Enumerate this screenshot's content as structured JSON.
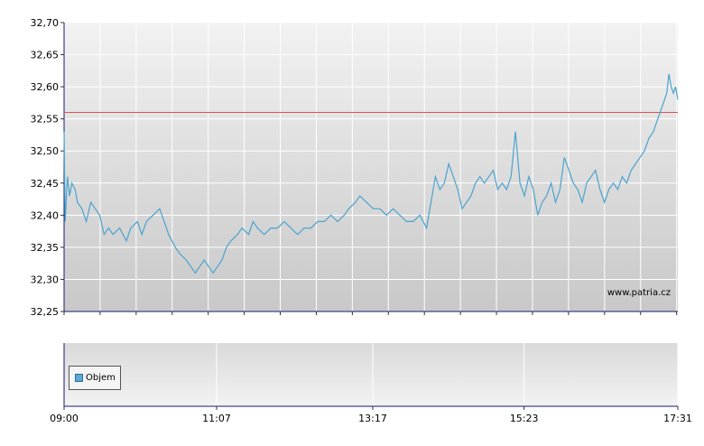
{
  "chart_data": {
    "type": "line",
    "watermark": "www.patria.cz",
    "y_ticks": [
      "32,70",
      "32,65",
      "32,60",
      "32,55",
      "32,50",
      "32,45",
      "32,40",
      "32,35",
      "32,30",
      "32,25"
    ],
    "ylim": [
      32.25,
      32.7
    ],
    "x_ticks": [
      "09:00",
      "11:07",
      "13:17",
      "15:23",
      "17:31"
    ],
    "reference_line": 32.56,
    "series": [
      {
        "color": "#4aa3cf",
        "values": [
          [
            0.0,
            32.53
          ],
          [
            0.5,
            32.39
          ],
          [
            1.5,
            32.46
          ],
          [
            2.5,
            32.43
          ],
          [
            3.5,
            32.45
          ],
          [
            5,
            32.44
          ],
          [
            6,
            32.42
          ],
          [
            8,
            32.41
          ],
          [
            10,
            32.39
          ],
          [
            12,
            32.42
          ],
          [
            14,
            32.41
          ],
          [
            16,
            32.4
          ],
          [
            18,
            32.37
          ],
          [
            20,
            32.38
          ],
          [
            22,
            32.37
          ],
          [
            25,
            32.38
          ],
          [
            28,
            32.36
          ],
          [
            30,
            32.38
          ],
          [
            33,
            32.39
          ],
          [
            35,
            32.37
          ],
          [
            37,
            32.39
          ],
          [
            40,
            32.4
          ],
          [
            43,
            32.41
          ],
          [
            45,
            32.39
          ],
          [
            47,
            32.37
          ],
          [
            50,
            32.35
          ],
          [
            52,
            32.34
          ],
          [
            55,
            32.33
          ],
          [
            57,
            32.32
          ],
          [
            59,
            32.31
          ],
          [
            61,
            32.32
          ],
          [
            63,
            32.33
          ],
          [
            65,
            32.32
          ],
          [
            67,
            32.31
          ],
          [
            69,
            32.32
          ],
          [
            71,
            32.33
          ],
          [
            73,
            32.35
          ],
          [
            75,
            32.36
          ],
          [
            78,
            32.37
          ],
          [
            80,
            32.38
          ],
          [
            83,
            32.37
          ],
          [
            85,
            32.39
          ],
          [
            87,
            32.38
          ],
          [
            90,
            32.37
          ],
          [
            93,
            32.38
          ],
          [
            96,
            32.38
          ],
          [
            99,
            32.39
          ],
          [
            102,
            32.38
          ],
          [
            105,
            32.37
          ],
          [
            108,
            32.38
          ],
          [
            111,
            32.38
          ],
          [
            114,
            32.39
          ],
          [
            117,
            32.39
          ],
          [
            120,
            32.4
          ],
          [
            123,
            32.39
          ],
          [
            126,
            32.4
          ],
          [
            128,
            32.41
          ],
          [
            131,
            32.42
          ],
          [
            133,
            32.43
          ],
          [
            136,
            32.42
          ],
          [
            139,
            32.41
          ],
          [
            142,
            32.41
          ],
          [
            145,
            32.4
          ],
          [
            148,
            32.41
          ],
          [
            151,
            32.4
          ],
          [
            154,
            32.39
          ],
          [
            157,
            32.39
          ],
          [
            160,
            32.4
          ],
          [
            163,
            32.38
          ],
          [
            165,
            32.42
          ],
          [
            167,
            32.46
          ],
          [
            169,
            32.44
          ],
          [
            171,
            32.45
          ],
          [
            173,
            32.48
          ],
          [
            175,
            32.46
          ],
          [
            177,
            32.44
          ],
          [
            179,
            32.41
          ],
          [
            181,
            32.42
          ],
          [
            183,
            32.43
          ],
          [
            185,
            32.45
          ],
          [
            187,
            32.46
          ],
          [
            189,
            32.45
          ],
          [
            191,
            32.46
          ],
          [
            193,
            32.47
          ],
          [
            195,
            32.44
          ],
          [
            197,
            32.45
          ],
          [
            199,
            32.44
          ],
          [
            201,
            32.46
          ],
          [
            203,
            32.53
          ],
          [
            205,
            32.45
          ],
          [
            207,
            32.43
          ],
          [
            209,
            32.46
          ],
          [
            211,
            32.44
          ],
          [
            213,
            32.4
          ],
          [
            215,
            32.42
          ],
          [
            217,
            32.43
          ],
          [
            219,
            32.45
          ],
          [
            221,
            32.42
          ],
          [
            223,
            32.44
          ],
          [
            225,
            32.49
          ],
          [
            227,
            32.47
          ],
          [
            229,
            32.45
          ],
          [
            231,
            32.44
          ],
          [
            233,
            32.42
          ],
          [
            235,
            32.45
          ],
          [
            237,
            32.46
          ],
          [
            239,
            32.47
          ],
          [
            241,
            32.44
          ],
          [
            243,
            32.42
          ],
          [
            245,
            32.44
          ],
          [
            247,
            32.45
          ],
          [
            249,
            32.44
          ],
          [
            251,
            32.46
          ],
          [
            253,
            32.45
          ],
          [
            255,
            32.47
          ],
          [
            257,
            32.48
          ],
          [
            259,
            32.49
          ],
          [
            261,
            32.5
          ],
          [
            263,
            32.52
          ],
          [
            265,
            32.53
          ],
          [
            267,
            32.55
          ],
          [
            269,
            32.57
          ],
          [
            271,
            32.59
          ],
          [
            272,
            32.62
          ],
          [
            273,
            32.6
          ],
          [
            274,
            32.59
          ],
          [
            275,
            32.6
          ],
          [
            276,
            32.58
          ]
        ]
      }
    ],
    "legend": [
      "Objem"
    ]
  }
}
